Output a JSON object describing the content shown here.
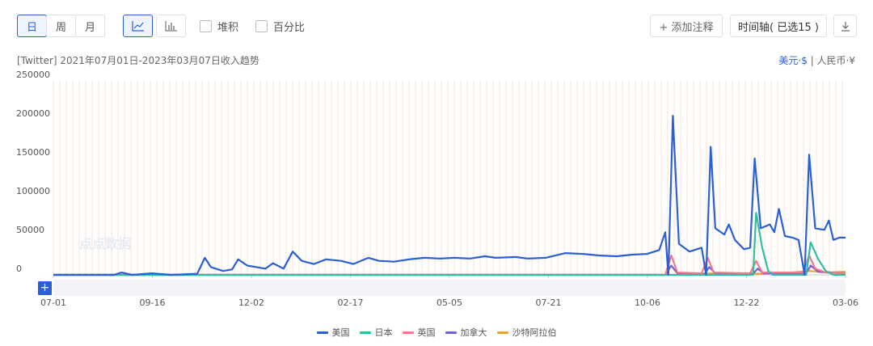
{
  "toolbar": {
    "period_day": "日",
    "period_week": "周",
    "period_month": "月",
    "stack_label": "堆积",
    "percent_label": "百分比",
    "add_note": "+ 添加注释",
    "timeline": "时间轴( 已选15 )",
    "download_icon": "download-icon"
  },
  "subtitle": "[Twitter]  2021年07月01日-2023年03月07日收入趋势",
  "currency": {
    "usd": "美元·$",
    "sep": " | ",
    "rmb": "人民币·¥"
  },
  "watermark": "点点数据",
  "chart_data": {
    "type": "line",
    "title": "[Twitter]  2021年07月01日-2023年03月07日收入趋势",
    "x_tick_labels": [
      "07-01",
      "09-16",
      "12-02",
      "02-17",
      "05-05",
      "07-21",
      "10-06",
      "12-22",
      "03-06"
    ],
    "y_tick_labels": [
      "250000",
      "200000",
      "150000",
      "100000",
      "50000",
      "0"
    ],
    "ylim": [
      0,
      250000
    ],
    "grid": "vertical",
    "legend_position": "bottom",
    "series": [
      {
        "name": "美国",
        "color": "#2a5fd6",
        "points": [
          [
            0,
            0
          ],
          [
            40,
            0
          ],
          [
            45,
            3000
          ],
          [
            52,
            0
          ],
          [
            65,
            2000
          ],
          [
            78,
            0
          ],
          [
            95,
            1500
          ],
          [
            100,
            22000
          ],
          [
            104,
            10000
          ],
          [
            112,
            5000
          ],
          [
            118,
            7000
          ],
          [
            122,
            20000
          ],
          [
            128,
            12000
          ],
          [
            140,
            8000
          ],
          [
            145,
            15000
          ],
          [
            152,
            8000
          ],
          [
            158,
            30000
          ],
          [
            164,
            18000
          ],
          [
            172,
            14000
          ],
          [
            180,
            20000
          ],
          [
            190,
            18000
          ],
          [
            198,
            14000
          ],
          [
            208,
            22000
          ],
          [
            215,
            18000
          ],
          [
            225,
            17000
          ],
          [
            235,
            20000
          ],
          [
            245,
            22000
          ],
          [
            255,
            21000
          ],
          [
            265,
            22000
          ],
          [
            275,
            21000
          ],
          [
            285,
            24000
          ],
          [
            292,
            22000
          ],
          [
            305,
            23000
          ],
          [
            313,
            21000
          ],
          [
            325,
            22000
          ],
          [
            338,
            28000
          ],
          [
            350,
            27000
          ],
          [
            360,
            25000
          ],
          [
            372,
            24000
          ],
          [
            382,
            26000
          ],
          [
            392,
            27000
          ],
          [
            400,
            32000
          ],
          [
            404,
            55000
          ],
          [
            406,
            0
          ],
          [
            409,
            205000
          ],
          [
            413,
            40000
          ],
          [
            420,
            30000
          ],
          [
            428,
            35000
          ],
          [
            431,
            0
          ],
          [
            434,
            165000
          ],
          [
            437,
            60000
          ],
          [
            443,
            52000
          ],
          [
            446,
            65000
          ],
          [
            450,
            45000
          ],
          [
            456,
            33000
          ],
          [
            460,
            35000
          ],
          [
            463,
            150000
          ],
          [
            467,
            60000
          ],
          [
            473,
            65000
          ],
          [
            476,
            55000
          ],
          [
            479,
            85000
          ],
          [
            483,
            50000
          ],
          [
            488,
            48000
          ],
          [
            492,
            45000
          ],
          [
            496,
            0
          ],
          [
            499,
            155000
          ],
          [
            503,
            60000
          ],
          [
            509,
            58000
          ],
          [
            512,
            70000
          ],
          [
            515,
            45000
          ],
          [
            519,
            48000
          ],
          [
            523,
            48000
          ]
        ]
      },
      {
        "name": "日本",
        "color": "#2fbf9f",
        "points": [
          [
            0,
            0
          ],
          [
            455,
            0
          ],
          [
            462,
            0
          ],
          [
            464,
            80000
          ],
          [
            468,
            35000
          ],
          [
            472,
            5000
          ],
          [
            475,
            0
          ],
          [
            497,
            0
          ],
          [
            500,
            42000
          ],
          [
            505,
            20000
          ],
          [
            510,
            5000
          ],
          [
            515,
            0
          ],
          [
            523,
            0
          ]
        ]
      },
      {
        "name": "英国",
        "color": "#f07a8a",
        "points": [
          [
            0,
            0
          ],
          [
            404,
            0
          ],
          [
            408,
            25000
          ],
          [
            412,
            3000
          ],
          [
            428,
            2000
          ],
          [
            432,
            22000
          ],
          [
            436,
            3000
          ],
          [
            460,
            2000
          ],
          [
            464,
            18000
          ],
          [
            468,
            3000
          ],
          [
            495,
            3000
          ],
          [
            499,
            25000
          ],
          [
            503,
            8000
          ],
          [
            510,
            3000
          ],
          [
            523,
            2000
          ]
        ]
      },
      {
        "name": "加拿大",
        "color": "#7a5bd6",
        "points": [
          [
            0,
            0
          ],
          [
            404,
            0
          ],
          [
            408,
            12000
          ],
          [
            412,
            2000
          ],
          [
            430,
            1000
          ],
          [
            433,
            10000
          ],
          [
            437,
            2000
          ],
          [
            462,
            1500
          ],
          [
            465,
            8000
          ],
          [
            469,
            2000
          ],
          [
            497,
            2000
          ],
          [
            500,
            12000
          ],
          [
            505,
            4000
          ],
          [
            523,
            2000
          ]
        ]
      },
      {
        "name": "沙特阿拉伯",
        "color": "#f0a030",
        "points": [
          [
            0,
            0
          ],
          [
            420,
            0
          ],
          [
            425,
            1000
          ],
          [
            433,
            2000
          ],
          [
            440,
            1000
          ],
          [
            470,
            1500
          ],
          [
            480,
            2000
          ],
          [
            500,
            5000
          ],
          [
            510,
            3000
          ],
          [
            523,
            4000
          ]
        ]
      }
    ]
  }
}
